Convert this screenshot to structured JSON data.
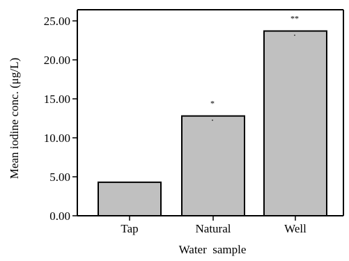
{
  "chart_data": {
    "type": "bar",
    "categories": [
      "Tap",
      "Natural",
      "Well"
    ],
    "values": [
      4.3,
      12.8,
      23.7
    ],
    "annotations": [
      "",
      "*",
      "**"
    ],
    "xlabel": "Water  sample",
    "ylabel": "Mean iodine conc. (μg/L)",
    "ylim": [
      0,
      25
    ],
    "yticks": [
      0,
      5,
      10,
      15,
      20,
      25
    ],
    "ytick_labels": [
      "0.00",
      "5.00",
      "10.00",
      "15.00",
      "20.00",
      "25.00"
    ],
    "grid": false,
    "legend": "none",
    "bar_color": "#c0c0c0",
    "edge_color": "#000000"
  }
}
